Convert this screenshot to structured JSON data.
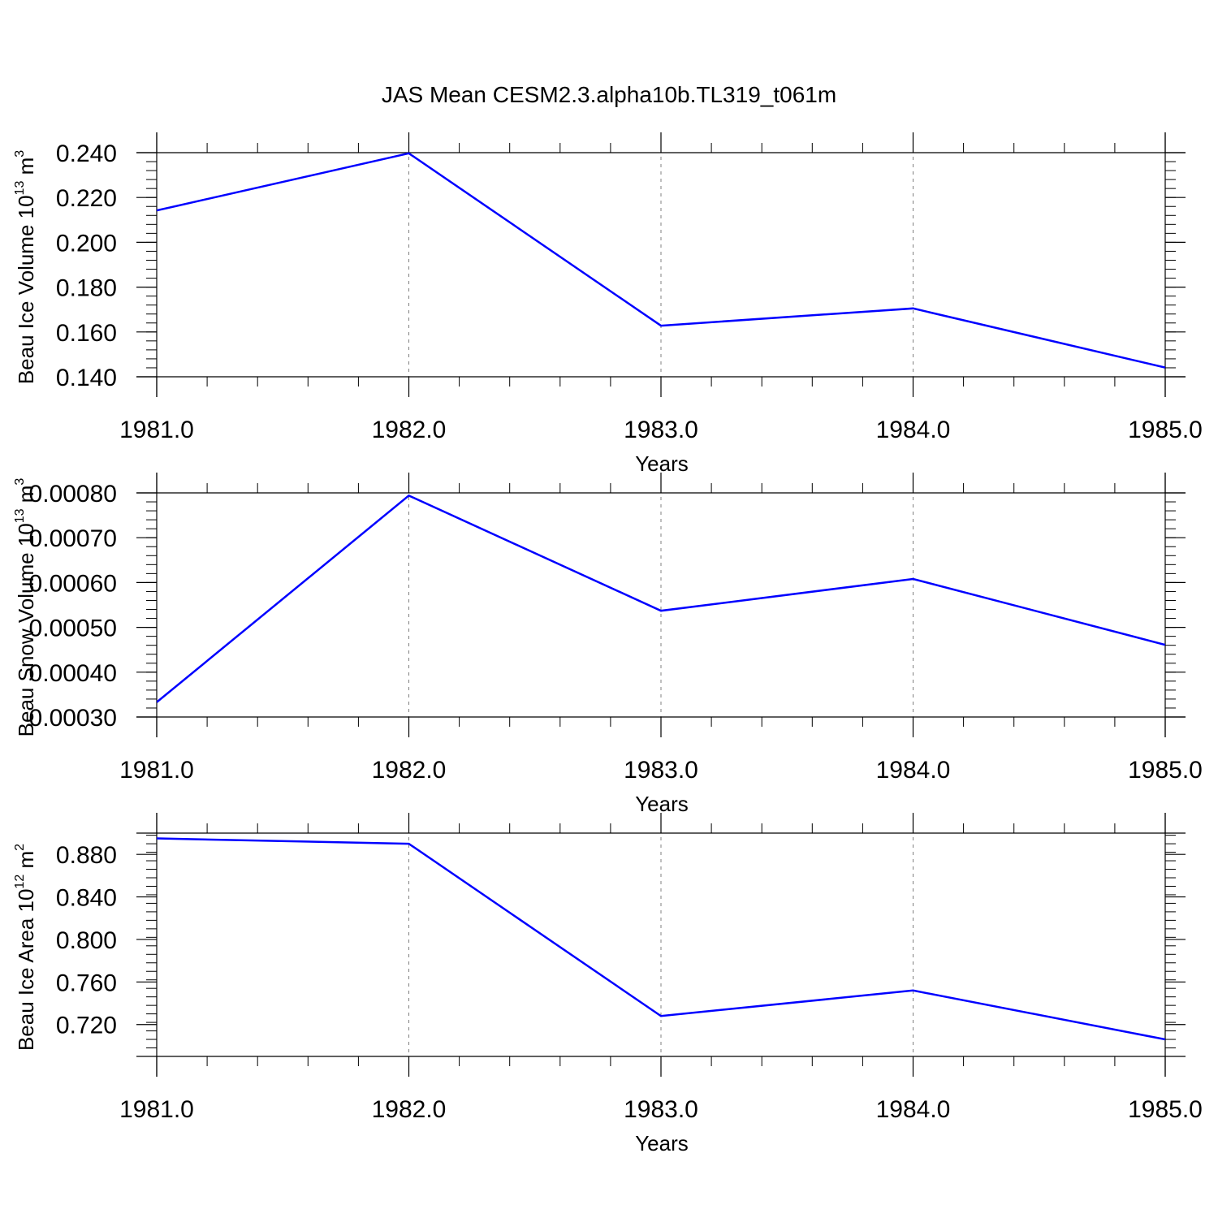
{
  "title": "JAS Mean CESM2.3.alpha10b.TL319_t061m",
  "colors": {
    "line": "#0000ff",
    "axis": "#000000",
    "grid": "#808080"
  },
  "chart_data": [
    {
      "type": "line",
      "ylabel": {
        "text": "Beau Ice Volume 10",
        "sup": "13",
        "unit": " m",
        "unit_sup": "3"
      },
      "xlabel": "Years",
      "x": [
        1981,
        1982,
        1983,
        1984,
        1985
      ],
      "xlim": [
        1981,
        1985
      ],
      "xticks": [
        "1981.0",
        "1982.0",
        "1983.0",
        "1984.0",
        "1985.0"
      ],
      "xtick_values": [
        1981,
        1982,
        1983,
        1984,
        1985
      ],
      "ylim": [
        0.14,
        0.24
      ],
      "yticks": [
        "0.140",
        "0.160",
        "0.180",
        "0.200",
        "0.220",
        "0.240"
      ],
      "ytick_values": [
        0.14,
        0.16,
        0.18,
        0.2,
        0.22,
        0.24
      ],
      "series": [
        {
          "values": [
            0.2142,
            0.2397,
            0.1628,
            0.1705,
            0.1441
          ]
        }
      ]
    },
    {
      "type": "line",
      "ylabel": {
        "text": "Beau Snow Volume 10",
        "sup": "13",
        "unit": " m",
        "unit_sup": "3"
      },
      "xlabel": "Years",
      "x": [
        1981,
        1982,
        1983,
        1984,
        1985
      ],
      "xlim": [
        1981,
        1985
      ],
      "xticks": [
        "1981.0",
        "1982.0",
        "1983.0",
        "1984.0",
        "1985.0"
      ],
      "xtick_values": [
        1981,
        1982,
        1983,
        1984,
        1985
      ],
      "ylim": [
        0.0003,
        0.0008
      ],
      "yticks": [
        "0.00030",
        "0.00040",
        "0.00050",
        "0.00060",
        "0.00070",
        "0.00080"
      ],
      "ytick_values": [
        0.0003,
        0.0004,
        0.0005,
        0.0006,
        0.0007,
        0.0008
      ],
      "series": [
        {
          "values": [
            0.000333,
            0.000794,
            0.000537,
            0.000608,
            0.000461
          ]
        }
      ]
    },
    {
      "type": "line",
      "ylabel": {
        "text": "Beau Ice Area 10",
        "sup": "12",
        "unit": " m",
        "unit_sup": "2"
      },
      "xlabel": "Years",
      "x": [
        1981,
        1982,
        1983,
        1984,
        1985
      ],
      "xlim": [
        1981,
        1985
      ],
      "xticks": [
        "1981.0",
        "1982.0",
        "1983.0",
        "1984.0",
        "1985.0"
      ],
      "xtick_values": [
        1981,
        1982,
        1983,
        1984,
        1985
      ],
      "ylim": [
        0.69,
        0.9
      ],
      "yticks": [
        "0.720",
        "0.760",
        "0.800",
        "0.840",
        "0.880"
      ],
      "ytick_values": [
        0.72,
        0.76,
        0.8,
        0.84,
        0.88
      ],
      "series": [
        {
          "values": [
            0.895,
            0.89,
            0.728,
            0.752,
            0.706
          ]
        }
      ]
    }
  ]
}
